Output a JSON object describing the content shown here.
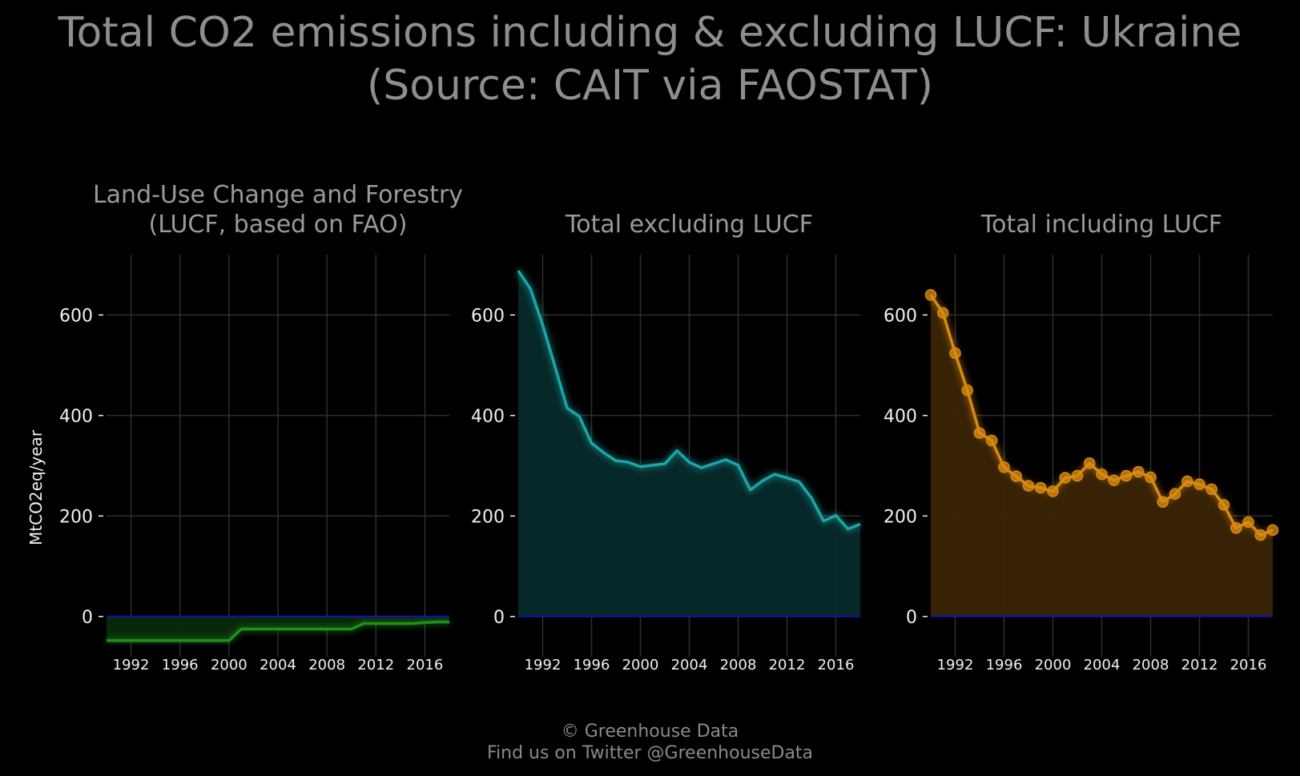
{
  "title_line1": "Total CO2 emissions including & excluding LUCF: Ukraine",
  "title_line2": "(Source: CAIT via FAOSTAT)",
  "credit_line1": "© Greenhouse Data",
  "credit_line2": "Find us on Twitter @GreenhouseData",
  "chart_data": [
    {
      "type": "area",
      "title_lines": [
        "Land-Use Change and Forestry",
        "(LUCF, based on FAO)"
      ],
      "ylabel": "MtCO2eq/year",
      "xlim": [
        1990,
        2018
      ],
      "ylim": [
        -80,
        720
      ],
      "yticks": [
        0,
        200,
        400,
        600
      ],
      "xticks": [
        1992,
        1996,
        2000,
        2004,
        2008,
        2012,
        2016
      ],
      "grid": true,
      "color": "#1f8f1f",
      "fill": "#0a2a0a",
      "markers": false,
      "x": [
        1990,
        1991,
        1992,
        1993,
        1994,
        1995,
        1996,
        1997,
        1998,
        1999,
        2000,
        2001,
        2002,
        2003,
        2004,
        2005,
        2006,
        2007,
        2008,
        2009,
        2010,
        2011,
        2012,
        2013,
        2014,
        2015,
        2016,
        2017,
        2018
      ],
      "values": [
        -48,
        -48,
        -48,
        -48,
        -48,
        -48,
        -48,
        -48,
        -48,
        -48,
        -48,
        -25,
        -25,
        -25,
        -25,
        -25,
        -25,
        -25,
        -25,
        -25,
        -25,
        -14,
        -14,
        -14,
        -14,
        -14,
        -12,
        -11,
        -11
      ]
    },
    {
      "type": "area",
      "title_lines": [
        "Total excluding LUCF"
      ],
      "ylabel": "",
      "xlim": [
        1990,
        2018
      ],
      "ylim": [
        -80,
        720
      ],
      "yticks": [
        0,
        200,
        400,
        600
      ],
      "xticks": [
        1992,
        1996,
        2000,
        2004,
        2008,
        2012,
        2016
      ],
      "grid": true,
      "color": "#1aa6a8",
      "fill": "#062a2a",
      "markers": false,
      "x": [
        1990,
        1991,
        1992,
        1993,
        1994,
        1995,
        1996,
        1997,
        1998,
        1999,
        2000,
        2001,
        2002,
        2003,
        2004,
        2005,
        2006,
        2007,
        2008,
        2009,
        2010,
        2011,
        2012,
        2013,
        2014,
        2015,
        2016,
        2017,
        2018
      ],
      "values": [
        688,
        652,
        580,
        498,
        415,
        398,
        345,
        326,
        310,
        307,
        298,
        301,
        304,
        330,
        307,
        296,
        304,
        312,
        301,
        252,
        270,
        283,
        276,
        268,
        236,
        190,
        201,
        174,
        184
      ]
    },
    {
      "type": "line",
      "title_lines": [
        "Total including LUCF"
      ],
      "ylabel": "",
      "xlim": [
        1990,
        2018
      ],
      "ylim": [
        -80,
        720
      ],
      "yticks": [
        0,
        200,
        400,
        600
      ],
      "xticks": [
        1992,
        1996,
        2000,
        2004,
        2008,
        2012,
        2016
      ],
      "grid": true,
      "color": "#d98a10",
      "fill": "#3a2405",
      "markers": true,
      "x": [
        1990,
        1991,
        1992,
        1993,
        1994,
        1995,
        1996,
        1997,
        1998,
        1999,
        2000,
        2001,
        2002,
        2003,
        2004,
        2005,
        2006,
        2007,
        2008,
        2009,
        2010,
        2011,
        2012,
        2013,
        2014,
        2015,
        2016,
        2017,
        2018
      ],
      "values": [
        640,
        604,
        524,
        450,
        365,
        350,
        297,
        279,
        260,
        256,
        249,
        276,
        280,
        305,
        283,
        271,
        280,
        288,
        277,
        228,
        244,
        269,
        263,
        253,
        222,
        176,
        188,
        162,
        172
      ]
    }
  ]
}
